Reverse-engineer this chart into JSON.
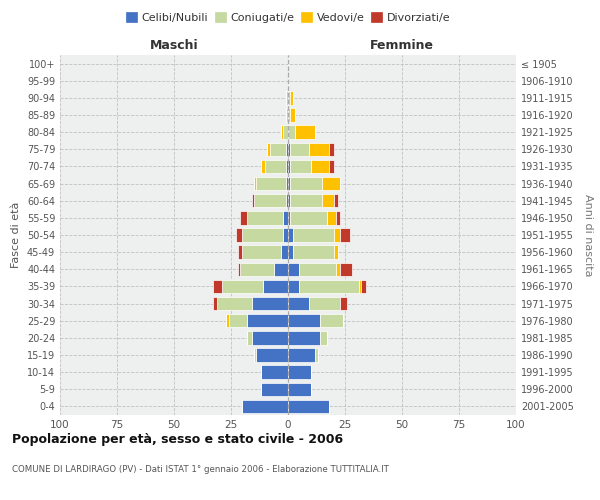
{
  "age_groups": [
    "100+",
    "95-99",
    "90-94",
    "85-89",
    "80-84",
    "75-79",
    "70-74",
    "65-69",
    "60-64",
    "55-59",
    "50-54",
    "45-49",
    "40-44",
    "35-39",
    "30-34",
    "25-29",
    "20-24",
    "15-19",
    "10-14",
    "5-9",
    "0-4"
  ],
  "birth_years": [
    "≤ 1905",
    "1906-1910",
    "1911-1915",
    "1916-1920",
    "1921-1925",
    "1926-1930",
    "1931-1935",
    "1936-1940",
    "1941-1945",
    "1946-1950",
    "1951-1955",
    "1956-1960",
    "1961-1965",
    "1966-1970",
    "1971-1975",
    "1976-1980",
    "1981-1985",
    "1986-1990",
    "1991-1995",
    "1996-2000",
    "2001-2005"
  ],
  "males": {
    "celibi": [
      0,
      0,
      0,
      0,
      0,
      1,
      1,
      1,
      1,
      2,
      2,
      3,
      6,
      11,
      16,
      18,
      16,
      14,
      12,
      12,
      20
    ],
    "coniugati": [
      0,
      0,
      1,
      1,
      2,
      7,
      9,
      13,
      14,
      16,
      18,
      17,
      15,
      18,
      15,
      8,
      2,
      1,
      0,
      0,
      0
    ],
    "vedovi": [
      0,
      0,
      0,
      0,
      1,
      1,
      2,
      1,
      0,
      0,
      0,
      0,
      0,
      0,
      0,
      1,
      0,
      0,
      0,
      0,
      0
    ],
    "divorziati": [
      0,
      0,
      0,
      0,
      0,
      0,
      0,
      0,
      1,
      3,
      3,
      2,
      1,
      4,
      2,
      0,
      0,
      0,
      0,
      0,
      0
    ]
  },
  "females": {
    "nubili": [
      0,
      0,
      0,
      0,
      0,
      1,
      1,
      1,
      1,
      1,
      2,
      2,
      5,
      5,
      9,
      14,
      14,
      12,
      10,
      10,
      18
    ],
    "coniugate": [
      0,
      0,
      1,
      1,
      3,
      8,
      9,
      14,
      14,
      16,
      18,
      18,
      16,
      26,
      14,
      10,
      3,
      1,
      0,
      0,
      0
    ],
    "vedove": [
      0,
      0,
      1,
      2,
      9,
      9,
      8,
      8,
      5,
      4,
      3,
      2,
      2,
      1,
      0,
      0,
      0,
      0,
      0,
      0,
      0
    ],
    "divorziate": [
      0,
      0,
      0,
      0,
      0,
      2,
      2,
      0,
      2,
      2,
      4,
      0,
      5,
      2,
      3,
      0,
      0,
      0,
      0,
      0,
      0
    ]
  },
  "colors": {
    "celibi": "#4472c4",
    "coniugati": "#c5d9a0",
    "vedovi": "#ffc000",
    "divorziati": "#c0392b"
  },
  "title": "Popolazione per età, sesso e stato civile - 2006",
  "subtitle": "COMUNE DI LARDIRAGO (PV) - Dati ISTAT 1° gennaio 2006 - Elaborazione TUTTITALIA.IT",
  "xlabel_left": "Maschi",
  "xlabel_right": "Femmine",
  "ylabel_left": "Fasce di età",
  "ylabel_right": "Anni di nascita",
  "xlim": 100,
  "legend_labels": [
    "Celibi/Nubili",
    "Coniugati/e",
    "Vedovi/e",
    "Divorziati/e"
  ],
  "background_color": "#ffffff",
  "grid_color": "#bbbbbb"
}
